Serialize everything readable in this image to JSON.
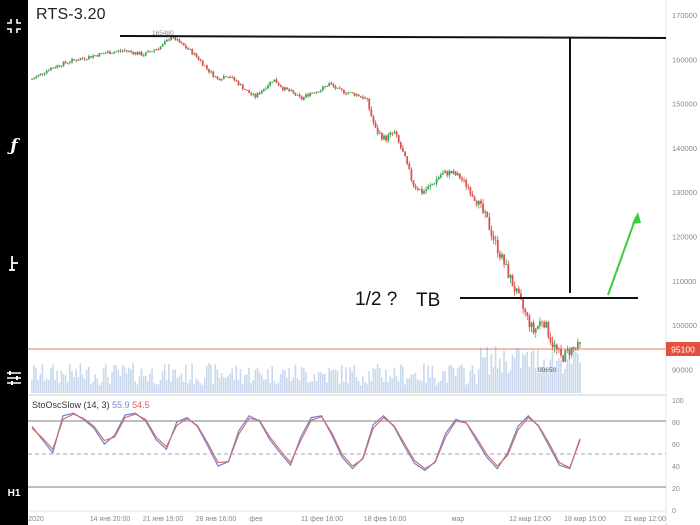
{
  "header": {
    "title": "RTS-3.20"
  },
  "toolbar": {
    "icons": [
      "fullscreen-icon",
      "function-icon",
      "drawing-tool-icon",
      "settings-sliders-icon"
    ],
    "timeframe": "H1"
  },
  "price_axis": {
    "ticks": [
      "170000",
      "160000",
      "150000",
      "140000",
      "130000",
      "120000",
      "110000",
      "100000",
      "90000"
    ],
    "last_price": "95100",
    "last_price_color": "#e0523f"
  },
  "osc_axis": {
    "ticks": [
      "100",
      "80",
      "60",
      "40",
      "20",
      "0"
    ]
  },
  "time_axis": {
    "labels": [
      "2020",
      "14 янв 20:00",
      "21 янв 19:00",
      "28 янв 16:00",
      "фев",
      "11 фев 16:00",
      "18 фев 16:00",
      "мар",
      "12 мар 12:00",
      "18 мар 15:00",
      "21 мар 12:00"
    ]
  },
  "annotations": {
    "high_label": "165480",
    "low_label": "90650",
    "half_text": "1/2 ?",
    "tb_text": "TB"
  },
  "oscillator": {
    "name": "StoOscSlow (14, 3)",
    "k_value": "55.9",
    "d_value": "54.5",
    "k_color": "#7b87c9",
    "d_color": "#d46a6a"
  },
  "chart_data": {
    "type": "candlestick",
    "title": "RTS-3.20",
    "xlabel": "",
    "ylabel": "",
    "ylim": [
      86000,
      172000
    ],
    "price_path": [
      [
        0,
        155500
      ],
      [
        4,
        158000
      ],
      [
        8,
        159500
      ],
      [
        12,
        160500
      ],
      [
        16,
        161500
      ],
      [
        20,
        162000
      ],
      [
        24,
        161000
      ],
      [
        28,
        163000
      ],
      [
        30,
        165200
      ],
      [
        32,
        163500
      ],
      [
        34,
        162000
      ],
      [
        36,
        160000
      ],
      [
        38,
        157500
      ],
      [
        40,
        155500
      ],
      [
        42,
        156500
      ],
      [
        44,
        155000
      ],
      [
        46,
        153000
      ],
      [
        48,
        151500
      ],
      [
        50,
        153500
      ],
      [
        52,
        155500
      ],
      [
        54,
        153500
      ],
      [
        56,
        152500
      ],
      [
        58,
        151000
      ],
      [
        60,
        152500
      ],
      [
        62,
        153000
      ],
      [
        64,
        154500
      ],
      [
        66,
        153000
      ],
      [
        68,
        152500
      ],
      [
        70,
        152000
      ],
      [
        72,
        151000
      ],
      [
        74,
        144000
      ],
      [
        76,
        142000
      ],
      [
        78,
        143500
      ],
      [
        80,
        138500
      ],
      [
        82,
        132000
      ],
      [
        84,
        130000
      ],
      [
        86,
        131500
      ],
      [
        88,
        134000
      ],
      [
        90,
        134500
      ],
      [
        92,
        133500
      ],
      [
        94,
        131000
      ],
      [
        96,
        127500
      ],
      [
        98,
        123500
      ],
      [
        100,
        118000
      ],
      [
        102,
        113000
      ],
      [
        104,
        108000
      ],
      [
        106,
        103000
      ],
      [
        108,
        98500
      ],
      [
        110,
        101500
      ],
      [
        112,
        96000
      ],
      [
        114,
        92500
      ],
      [
        116,
        94500
      ],
      [
        118,
        95100
      ]
    ],
    "volume_note": "volume bars along bottom of price panel",
    "oscillator_series": [
      {
        "name": "%K",
        "values": [
          70,
          55,
          40,
          82,
          85,
          78,
          68,
          50,
          60,
          83,
          85,
          76,
          55,
          44,
          75,
          80,
          70,
          48,
          25,
          30,
          65,
          82,
          76,
          55,
          40,
          26,
          58,
          80,
          82,
          60,
          35,
          22,
          34,
          72,
          82,
          70,
          48,
          28,
          20,
          30,
          62,
          78,
          74,
          54,
          35,
          22,
          40,
          70,
          82,
          70,
          48,
          26,
          22,
          56
        ]
      },
      {
        "name": "%D",
        "values": [
          68,
          57,
          44,
          78,
          84,
          79,
          70,
          54,
          58,
          80,
          84,
          78,
          58,
          47,
          71,
          79,
          71,
          51,
          29,
          30,
          61,
          79,
          77,
          58,
          43,
          29,
          54,
          77,
          81,
          63,
          38,
          25,
          33,
          68,
          80,
          71,
          51,
          31,
          22,
          29,
          58,
          76,
          74,
          57,
          38,
          25,
          37,
          66,
          80,
          71,
          51,
          29,
          23,
          54
        ]
      }
    ]
  }
}
